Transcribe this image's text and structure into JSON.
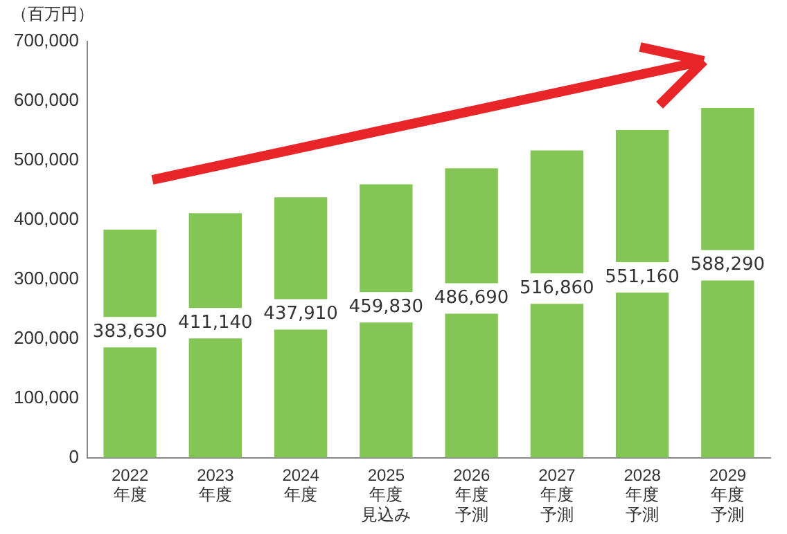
{
  "chart_data": {
    "type": "bar",
    "ylabel": "（百万円）",
    "categories": [
      "2022\n年度",
      "2023\n年度",
      "2024\n年度",
      "2025\n年度見込み",
      "2026\n年度予測",
      "2027\n年度予測",
      "2028\n年度予測",
      "2029\n年度予測"
    ],
    "values": [
      383630,
      411140,
      437910,
      459830,
      486690,
      516860,
      551160,
      588290
    ],
    "value_labels": [
      "383,630",
      "411,140",
      "437,910",
      "459,830",
      "486,690",
      "516,860",
      "551,160",
      "588,290"
    ],
    "color": "#84c655",
    "ylim": [
      0,
      700000
    ],
    "yticks": [
      0,
      {
        "value": 100000,
        "label": "100,000"
      },
      {
        "value": 200000,
        "label": "200,000"
      },
      {
        "value": 300000,
        "label": "300,000"
      },
      {
        "value": 400000,
        "label": "400,000"
      },
      {
        "value": 500000,
        "label": "500,000"
      },
      {
        "value": 600000,
        "label": "600,000"
      },
      {
        "value": 700000,
        "label": "700,000"
      }
    ],
    "grid": false,
    "legend": false,
    "data_labels": true
  }
}
